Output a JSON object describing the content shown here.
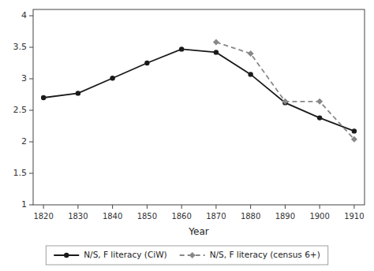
{
  "chart_data": {
    "type": "line",
    "x_label": "Year",
    "series": [
      {
        "name": "N/S, F literacy (CiW)",
        "color": "#1a1a1a",
        "marker": "circle",
        "line_style": "solid",
        "x": [
          1820,
          1830,
          1840,
          1850,
          1860,
          1870,
          1880,
          1890,
          1900,
          1910
        ],
        "values": [
          2.7,
          2.77,
          3.01,
          3.25,
          3.47,
          3.42,
          3.07,
          2.62,
          2.38,
          2.17
        ]
      },
      {
        "name": "N/S, F literacy (census 6+)",
        "color": "#888888",
        "marker": "diamond",
        "line_style": "dashed",
        "x": [
          1870,
          1880,
          1890,
          1900,
          1910
        ],
        "values": [
          3.58,
          3.4,
          2.64,
          2.64,
          2.04
        ]
      }
    ],
    "xlim": [
      1817,
      1913
    ],
    "ylim": [
      1.0,
      4.1
    ],
    "xticks": [
      1820,
      1830,
      1840,
      1850,
      1860,
      1870,
      1880,
      1890,
      1900,
      1910
    ],
    "yticks": [
      1,
      1.5,
      2,
      2.5,
      3,
      3.5,
      4
    ],
    "grid": false,
    "legend": "bottom"
  }
}
